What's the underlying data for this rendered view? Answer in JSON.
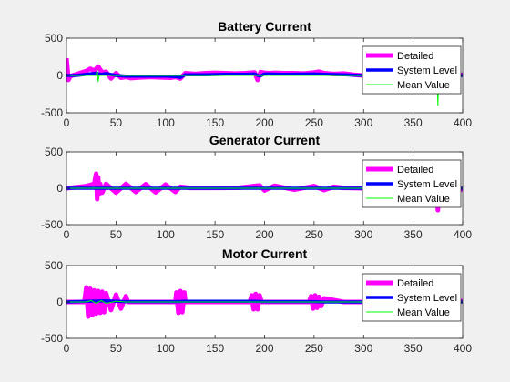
{
  "chart_data": [
    {
      "type": "line",
      "title": "Battery Current",
      "xlim": [
        0,
        400
      ],
      "ylim": [
        -500,
        500
      ],
      "xticks": [
        "0",
        "50",
        "100",
        "150",
        "200",
        "250",
        "300",
        "350",
        "400"
      ],
      "yticks": [
        "500",
        "0",
        "-500"
      ],
      "grid": false,
      "legend_position": "top-right",
      "series": [
        {
          "name": "Detailed",
          "color": "#ff00ff",
          "x": [
            0,
            2,
            4,
            20,
            24,
            28,
            32,
            36,
            40,
            45,
            50,
            55,
            60,
            65,
            75,
            85,
            95,
            105,
            110,
            115,
            120,
            130,
            140,
            150,
            160,
            170,
            180,
            190,
            193,
            196,
            200,
            205,
            210,
            220,
            230,
            240,
            250,
            255,
            260,
            270,
            280,
            290,
            300,
            350,
            400
          ],
          "y": [
            230,
            -60,
            -10,
            60,
            90,
            60,
            120,
            40,
            50,
            -40,
            30,
            -30,
            -20,
            -35,
            -25,
            -20,
            -25,
            -30,
            -20,
            -40,
            30,
            20,
            30,
            35,
            30,
            25,
            30,
            40,
            -60,
            45,
            35,
            30,
            35,
            30,
            30,
            25,
            40,
            50,
            30,
            20,
            25,
            10,
            0,
            0,
            10
          ]
        },
        {
          "name": "System Level",
          "color": "#0000ff",
          "x": [
            0,
            10,
            20,
            30,
            35,
            40,
            50,
            60,
            80,
            100,
            110,
            115,
            120,
            140,
            160,
            180,
            190,
            195,
            200,
            220,
            250,
            260,
            280,
            300,
            350,
            400
          ],
          "y": [
            0,
            0,
            15,
            30,
            15,
            25,
            0,
            -10,
            -10,
            -10,
            -15,
            -25,
            10,
            10,
            15,
            15,
            20,
            -10,
            20,
            15,
            20,
            15,
            10,
            0,
            0,
            0
          ]
        },
        {
          "name": "Mean Value",
          "color": "#00ff00",
          "x": [
            0,
            30,
            31,
            32,
            33,
            60,
            374,
            375,
            376,
            400
          ],
          "y": [
            0,
            0,
            80,
            -80,
            0,
            0,
            0,
            -400,
            0,
            0
          ]
        }
      ]
    },
    {
      "type": "line",
      "title": "Generator Current",
      "xlim": [
        0,
        400
      ],
      "ylim": [
        -500,
        500
      ],
      "xticks": [
        "0",
        "50",
        "100",
        "150",
        "200",
        "250",
        "300",
        "350",
        "400"
      ],
      "yticks": [
        "500",
        "0",
        "-500"
      ],
      "grid": false,
      "legend_position": "top-right",
      "series": [
        {
          "name": "Detailed",
          "color": "#ff00ff",
          "x": [
            0,
            20,
            28,
            30,
            31,
            32,
            33,
            34,
            36,
            40,
            50,
            60,
            70,
            80,
            90,
            100,
            110,
            115,
            125,
            150,
            175,
            195,
            200,
            210,
            230,
            250,
            260,
            270,
            280,
            300,
            340,
            370,
            373,
            375,
            377,
            380,
            400
          ],
          "y": [
            0,
            30,
            60,
            200,
            -150,
            150,
            -80,
            60,
            -60,
            60,
            -60,
            60,
            -50,
            55,
            -55,
            50,
            -50,
            20,
            5,
            5,
            8,
            40,
            -30,
            35,
            -20,
            30,
            -25,
            20,
            5,
            0,
            0,
            0,
            300,
            -300,
            300,
            -200,
            0
          ]
        },
        {
          "name": "System Level",
          "color": "#0000ff",
          "x": [
            0,
            400
          ],
          "y": [
            0,
            0
          ]
        },
        {
          "name": "Mean Value",
          "color": "#00ff00",
          "x": [
            0,
            400
          ],
          "y": [
            0,
            0
          ]
        }
      ]
    },
    {
      "type": "line",
      "title": "Motor Current",
      "xlim": [
        0,
        400
      ],
      "ylim": [
        -500,
        500
      ],
      "xticks": [
        "0",
        "50",
        "100",
        "150",
        "200",
        "250",
        "300",
        "350",
        "400"
      ],
      "yticks": [
        "500",
        "0",
        "-500"
      ],
      "grid": false,
      "legend_position": "top-right",
      "series": [
        {
          "name": "Detailed",
          "color": "#ff00ff",
          "x": [
            0,
            18,
            20,
            22,
            24,
            26,
            28,
            30,
            32,
            34,
            36,
            38,
            40,
            45,
            50,
            55,
            60,
            62,
            110,
            111,
            113,
            115,
            117,
            119,
            120,
            185,
            187,
            189,
            191,
            193,
            195,
            197,
            245,
            247,
            249,
            251,
            253,
            255,
            257,
            260,
            280,
            300,
            370,
            373,
            375,
            400
          ],
          "y": [
            0,
            0,
            200,
            -200,
            180,
            -180,
            160,
            -160,
            150,
            -150,
            140,
            -140,
            120,
            -110,
            100,
            -90,
            80,
            0,
            0,
            130,
            -150,
            150,
            -140,
            130,
            0,
            0,
            90,
            -100,
            110,
            -100,
            90,
            0,
            0,
            80,
            -90,
            90,
            -80,
            70,
            -60,
            50,
            0,
            0,
            0,
            -200,
            200,
            0
          ]
        },
        {
          "name": "System Level",
          "color": "#0000ff",
          "x": [
            0,
            20,
            40,
            60,
            110,
            120,
            190,
            200,
            250,
            260,
            400
          ],
          "y": [
            0,
            10,
            15,
            5,
            5,
            10,
            10,
            5,
            5,
            0,
            0
          ]
        },
        {
          "name": "Mean Value",
          "color": "#00ff00",
          "x": [
            0,
            20,
            25,
            30,
            35,
            40,
            50,
            60,
            400
          ],
          "y": [
            0,
            0,
            20,
            -20,
            20,
            -20,
            10,
            0,
            0
          ]
        }
      ]
    }
  ]
}
